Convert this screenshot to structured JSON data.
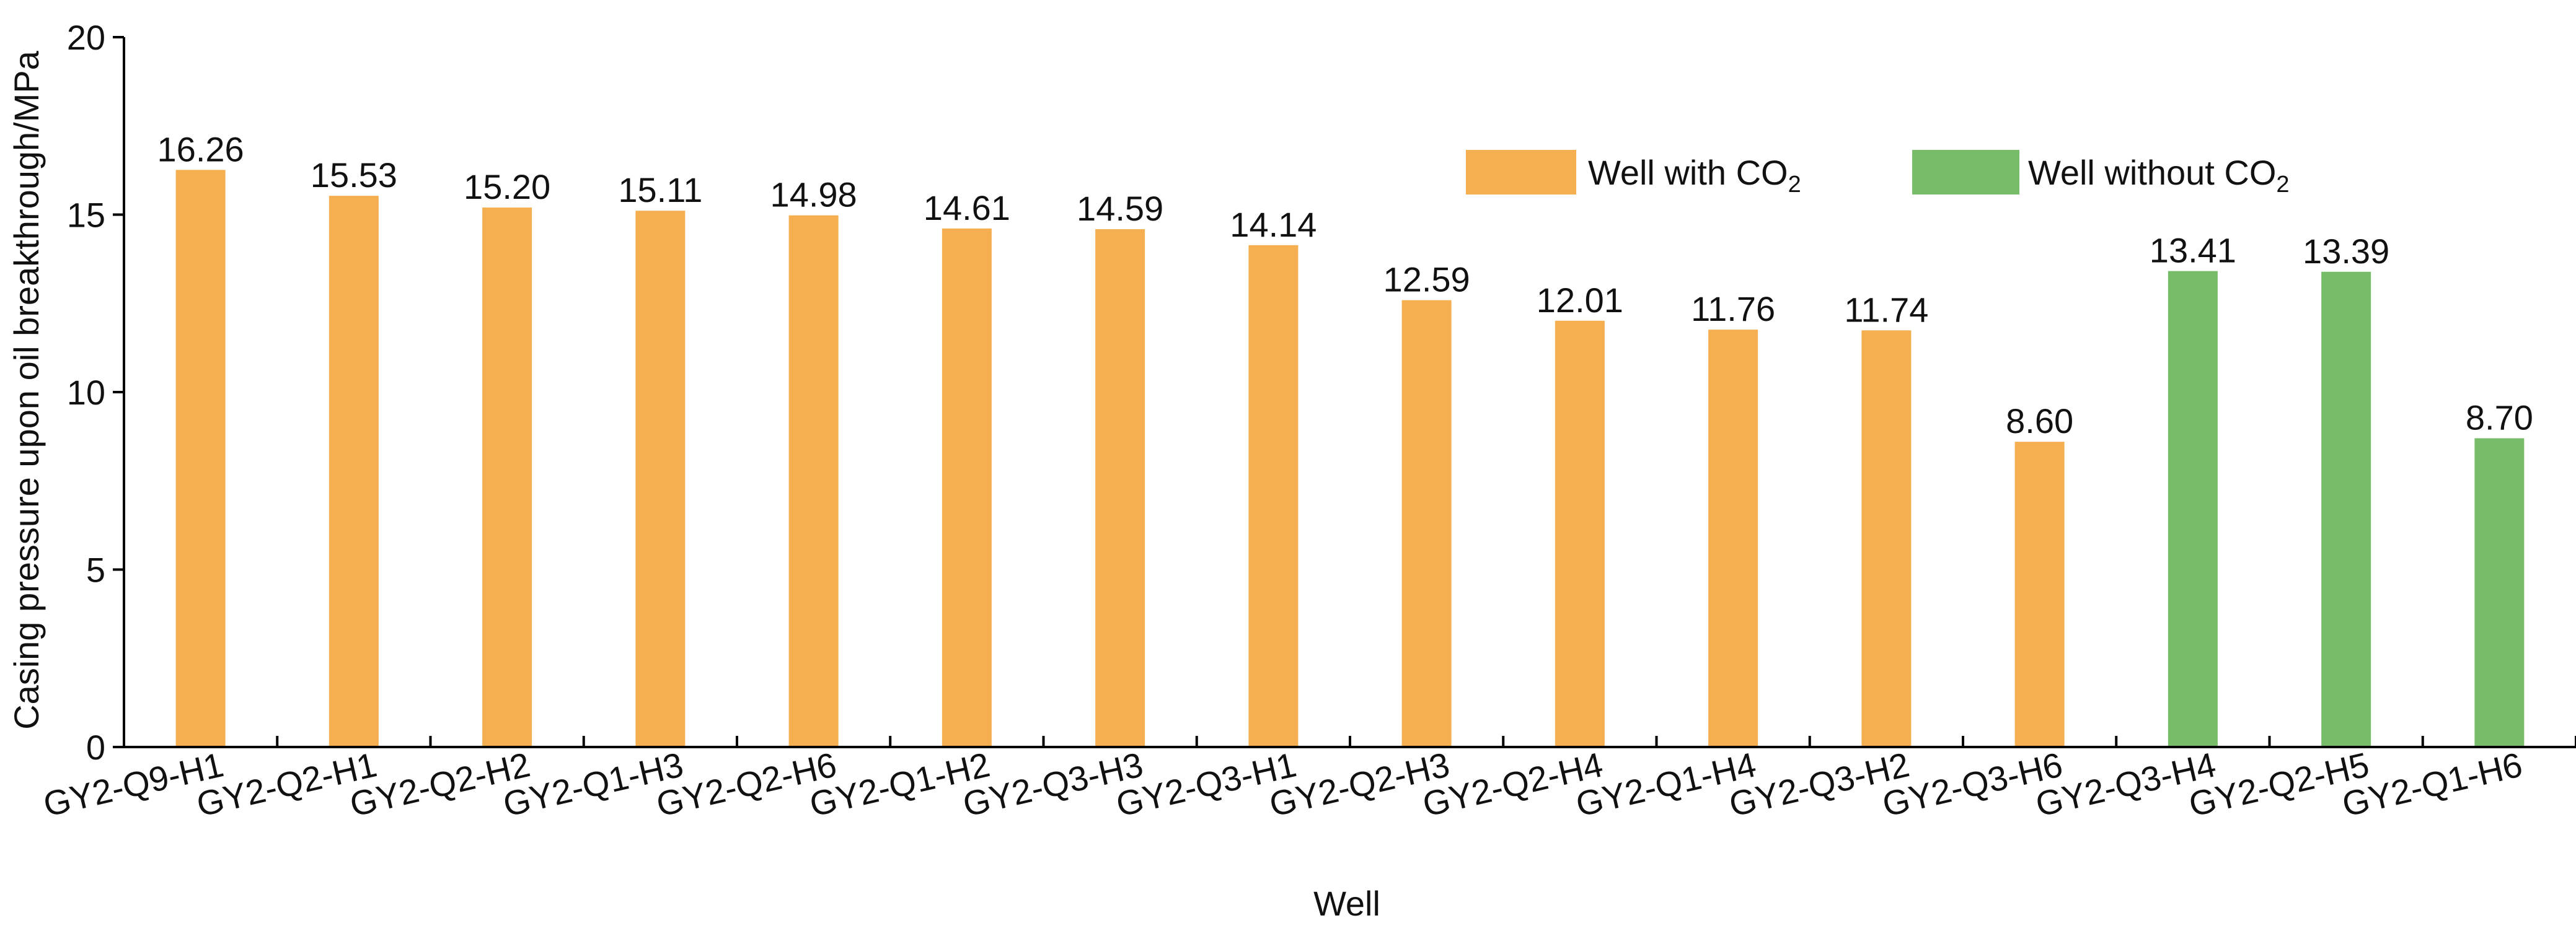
{
  "chart_data": {
    "type": "bar",
    "title": "",
    "xlabel": "Well",
    "ylabel": "Casing pressure upon oil breakthrough/MPa",
    "ylim": [
      0,
      20
    ],
    "yticks": [
      "0",
      "5",
      "10",
      "15",
      "20"
    ],
    "categories": [
      "GY2-Q9-H1",
      "GY2-Q2-H1",
      "GY2-Q2-H2",
      "GY2-Q1-H3",
      "GY2-Q2-H6",
      "GY2-Q1-H2",
      "GY2-Q3-H3",
      "GY2-Q3-H1",
      "GY2-Q2-H3",
      "GY2-Q2-H4",
      "GY2-Q1-H4",
      "GY2-Q3-H2",
      "GY2-Q3-H6",
      "GY2-Q3-H4",
      "GY2-Q2-H5",
      "GY2-Q1-H6"
    ],
    "values": [
      16.26,
      15.53,
      15.2,
      15.11,
      14.98,
      14.61,
      14.59,
      14.14,
      12.59,
      12.01,
      11.76,
      11.74,
      8.6,
      13.41,
      13.39,
      8.7
    ],
    "value_labels": [
      "16.26",
      "15.53",
      "15.20",
      "15.11",
      "14.98",
      "14.61",
      "14.59",
      "14.14",
      "12.59",
      "12.01",
      "11.76",
      "11.74",
      "8.60",
      "13.41",
      "13.39",
      "8.70"
    ],
    "groups": [
      0,
      0,
      0,
      0,
      0,
      0,
      0,
      0,
      0,
      0,
      0,
      0,
      0,
      1,
      1,
      1
    ],
    "series": [
      {
        "name": "Well with CO2",
        "label_main": "Well with CO",
        "label_sub": "2",
        "color": "#F5AE50"
      },
      {
        "name": "Well without CO2",
        "label_main": "Well without CO",
        "label_sub": "2",
        "color": "#77BD69"
      }
    ],
    "legend_position": "top-right",
    "grid": false
  }
}
